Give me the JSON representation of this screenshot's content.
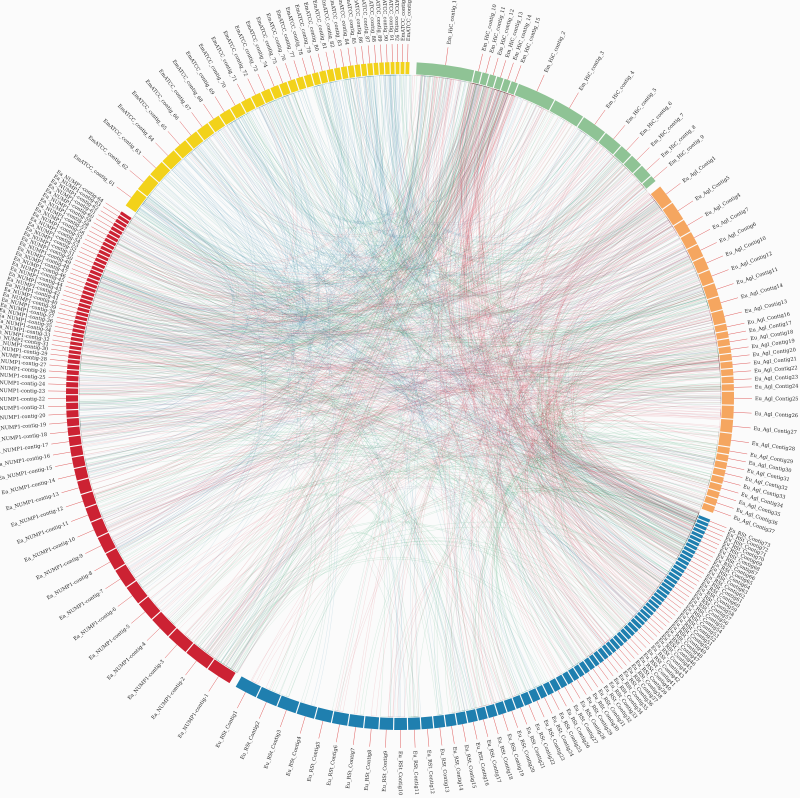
{
  "chart_data": {
    "type": "chord",
    "title": "",
    "colors": {
      "green_group": "#8fc395",
      "orange_group": "#f5a660",
      "blue_group": "#1f7faf",
      "red_group": "#cc2233",
      "yellow_group": "#f2d21a",
      "links": [
        "#cc2233",
        "#1f7a9e",
        "#16914f",
        "#7a4e7e",
        "#b53a3a",
        "#2a8f6a"
      ]
    },
    "groups": [
      {
        "name": "EM_HiC",
        "color_key": "green_group",
        "segments": [
          "Em_HiC_contig_1",
          "Em_HiC_contig_10",
          "Em_HiC_contig_11",
          "Em_HiC_contig_12",
          "Em_HiC_contig_13",
          "Em_HiC_contig_14",
          "Em_HiC_contig_15",
          "Em_HiC_contig_2",
          "Em_HiC_contig_3",
          "Em_HiC_contig_4",
          "Em_HiC_contig_5",
          "Em_HiC_contig_6",
          "Em_HiC_contig_7",
          "Em_HiC_contig_8",
          "Em_HiC_contig_9"
        ],
        "weights": [
          9,
          1,
          1,
          1,
          1,
          1,
          1,
          6,
          5,
          4,
          3,
          2,
          2,
          2,
          1
        ]
      },
      {
        "name": "Eu_Agl",
        "color_key": "orange_group",
        "segments": [
          "Eu_Agl_Contig1",
          "Eu_Agl_Contig5",
          "Eu_Agl_Contig4",
          "Eu_Agl_Contig7",
          "Eu_Agl_Contig6",
          "Eu_Agl_Contig10",
          "Eu_Agl_Contig12",
          "Eu_Agl_Contig11",
          "Eu_Agl_Contig14",
          "Eu_Agl_Contig13",
          "Eu_Agl_Contig16",
          "Eu_Agl_Contig17",
          "Eu_Agl_Contig18",
          "Eu_Agl_Contig19",
          "Eu_Agl_Contig20",
          "Eu_Agl_Contig21",
          "Eu_Agl_Contig22",
          "Eu_Agl_Contig23",
          "Eu_Agl_Contig24",
          "Eu_Agl_Contig25",
          "Eu_Agl_Contig26",
          "Eu_Agl_Contig27",
          "Eu_Agl_Contig28",
          "Eu_Agl_Contig29",
          "Eu_Agl_Contig30",
          "Eu_Agl_Contig31",
          "Eu_Agl_Contig32",
          "Eu_Agl_Contig33",
          "Eu_Agl_Contig34",
          "Eu_Agl_Contig35",
          "Eu_Agl_Contig36",
          "Eu_Agl_Contig37"
        ],
        "weights": [
          3,
          3,
          2,
          2,
          2,
          2,
          2,
          2,
          2,
          2,
          1,
          1,
          1,
          1,
          1,
          1,
          1,
          1,
          1,
          2,
          2,
          2,
          2,
          1,
          1,
          1,
          1,
          1,
          1,
          1,
          1,
          1
        ]
      },
      {
        "name": "Eu_RSt",
        "color_key": "blue_group",
        "segments": [
          "Eu_RSt_Contig73",
          "Eu_RSt_Contig72",
          "Eu_RSt_Contig71",
          "Eu_RSt_Contig70",
          "Eu_RSt_Contig69",
          "Eu_RSt_Contig68",
          "Eu_RSt_Contig67",
          "Eu_RSt_Contig66",
          "Eu_RSt_Contig65",
          "Eu_RSt_Contig64",
          "Eu_RSt_Contig63",
          "Eu_RSt_Contig62",
          "Eu_RSt_Contig61",
          "Eu_RSt_Contig60",
          "Eu_RSt_Contig59",
          "Eu_RSt_Contig58",
          "Eu_RSt_Contig57",
          "Eu_RSt_Contig56",
          "Eu_RSt_Contig55",
          "Eu_RSt_Contig54",
          "Eu_RSt_Contig53",
          "Eu_RSt_Contig52",
          "Eu_RSt_Contig51",
          "Eu_RSt_Contig50",
          "Eu_RSt_Contig49",
          "Eu_RSt_Contig48",
          "Eu_RSt_Contig47",
          "Eu_RSt_Contig46",
          "Eu_RSt_Contig45",
          "Eu_RSt_Contig44",
          "Eu_RSt_Contig43",
          "Eu_RSt_Contig42",
          "Eu_RSt_Contig41",
          "Eu_RSt_Contig40",
          "Eu_RSt_Contig39",
          "Eu_RSt_Contig38",
          "Eu_RSt_Contig37",
          "Eu_RSt_Contig36",
          "Eu_RSt_Contig35",
          "Eu_RSt_Contig34",
          "Eu_RSt_Contig33",
          "Eu_RSt_Contig32",
          "Eu_RSt_Contig31",
          "Eu_RSt_Contig30",
          "Eu_RSt_Contig29",
          "Eu_RSt_Contig28",
          "Eu_RSt_Contig27",
          "Eu_RSt_Contig26",
          "Eu_RSt_Contig25",
          "Eu_RSt_Contig24",
          "Eu_RSt_Contig23",
          "Eu_RSt_Contig22",
          "Eu_RSt_Contig21",
          "Eu_RSt_Contig20",
          "Eu_RSt_Contig19",
          "Eu_RSt_Contig18",
          "Eu_RSt_Contig17",
          "Eu_RSt_Contig16",
          "Eu_RSt_Contig15",
          "Eu_RSt_Contig14",
          "Eu_RSt_Contig13",
          "Eu_RSt_Contig12",
          "Eu_RSt_Contig11",
          "Eu_RSt_Contig10",
          "Eu_RSt_Contig9",
          "Eu_RSt_Contig8",
          "Eu_RSt_Contig7",
          "Eu_RSt_Contig6",
          "Eu_RSt_Contig5",
          "Eu_RSt_Contig4",
          "Eu_RSt_Contig3",
          "Eu_RSt_Contig2",
          "Eu_RSt_Contig1"
        ],
        "weights": [
          0.5,
          0.5,
          0.5,
          0.5,
          0.5,
          0.5,
          0.5,
          0.5,
          0.5,
          0.5,
          0.5,
          0.5,
          0.5,
          0.5,
          0.5,
          0.5,
          0.5,
          0.5,
          0.5,
          0.5,
          0.5,
          0.5,
          0.5,
          0.5,
          0.5,
          0.5,
          0.5,
          0.5,
          0.5,
          0.6,
          0.6,
          0.6,
          0.6,
          0.6,
          0.6,
          0.6,
          0.6,
          0.6,
          0.7,
          0.7,
          0.7,
          0.8,
          0.8,
          0.8,
          0.9,
          0.9,
          1,
          1,
          1,
          1,
          1.2,
          1.2,
          1.2,
          1.3,
          1.3,
          1.4,
          1.4,
          1.5,
          1.5,
          1.6,
          1.7,
          1.8,
          1.9,
          2,
          2.1,
          2.2,
          2.3,
          2.4,
          2.5,
          2.8,
          3,
          3.3,
          3.5
        ]
      },
      {
        "name": "Ea_NUMP1",
        "color_key": "red_group",
        "segments": [
          "Ea_NUMP1-contig-1",
          "Ea_NUMP1-contig-2",
          "Ea_NUMP1-contig-3",
          "Ea_NUMP1-contig-4",
          "Ea_NUMP1-contig-5",
          "Ea_NUMP1-contig-6",
          "Ea_NUMP1-contig-7",
          "Ea_NUMP1-contig-8",
          "Ea_NUMP1-contig-9",
          "Ea_NUMP1-contig-10",
          "Ea_NUMP1-contig-11",
          "Ea_NUMP1-contig-12",
          "Ea_NUMP1-contig-13",
          "Ea_NUMP1-contig-14",
          "Ea_NUMP1-contig-15",
          "Ea_NUMP1-contig-16",
          "Ea_NUMP1-contig-17",
          "Ea_NUMP1-contig-18",
          "Ea_NUMP1-contig-19",
          "Ea_NUMP1-contig-20",
          "Ea_NUMP1-contig-21",
          "Ea_NUMP1-contig-22",
          "Ea_NUMP1-contig-23",
          "Ea_NUMP1-contig-24",
          "Ea_NUMP1-contig-25",
          "Ea_NUMP1-contig-26",
          "Ea_NUMP1-contig-27",
          "Ea_NUMP1-contig-28",
          "Ea_NUMP1-contig-29",
          "Ea_NUMP1-contig-30",
          "Ea_NUMP1-contig-31",
          "Ea_NUMP1-contig-32",
          "Ea_NUMP1-contig-33",
          "Ea_NUMP1-contig-34",
          "Ea_NUMP1-contig-35",
          "Ea_NUMP1-contig-36",
          "Ea_NUMP1-contig-37",
          "Ea_NUMP1-contig-38",
          "Ea_NUMP1-contig-39",
          "Ea_NUMP1-contig-40",
          "Ea_NUMP1-contig-41",
          "Ea_NUMP1-contig-42",
          "Ea_NUMP1-contig-43",
          "Ea_NUMP1-contig-44",
          "Ea_NUMP1-contig-45",
          "Ea_NUMP1-contig-46",
          "Ea_NUMP1-contig-47",
          "Ea_NUMP1-contig-48",
          "Ea_NUMP1-contig-49",
          "Ea_NUMP1-contig-50",
          "Ea_NUMP1-contig-51",
          "Ea_NUMP1-contig-52",
          "Ea_NUMP1-contig-53",
          "Ea_NUMP1-contig-54",
          "Ea_NUMP1-contig-55",
          "Ea_NUMP1-contig-56",
          "Ea_NUMP1-contig-57",
          "Ea_NUMP1-contig-58",
          "Ea_NUMP1-contig-59",
          "Ea_NUMP1-contig-60",
          "Ea_NUMP1-contig-61",
          "Ea_NUMP1-contig-62",
          "Ea_NUMP1-contig-63",
          "Ea_NUMP1-contig-64"
        ],
        "weights": [
          4,
          4,
          3.5,
          3.5,
          3,
          3,
          3,
          2.8,
          2.6,
          2.4,
          2.2,
          2,
          2,
          1.8,
          1.6,
          1.5,
          1.4,
          1.3,
          1.2,
          1.1,
          1,
          1,
          0.9,
          0.8,
          0.8,
          0.7,
          0.7,
          0.6,
          0.6,
          0.5,
          0.5,
          0.5,
          0.5,
          0.5,
          0.5,
          0.5,
          0.5,
          0.5,
          0.5,
          0.5,
          0.5,
          0.5,
          0.5,
          0.5,
          0.5,
          0.5,
          0.5,
          0.5,
          0.5,
          0.5,
          0.5,
          0.5,
          0.5,
          0.5,
          0.5,
          0.5,
          0.5,
          0.5,
          0.5,
          0.5,
          0.5,
          0.5,
          0.5,
          0.5
        ]
      },
      {
        "name": "EmATCC",
        "color_key": "yellow_group",
        "segments": [
          "EmATCC_contig_61",
          "EmATCC_contig_62",
          "EmATCC_contig_63",
          "EmATCC_contig_64",
          "EmATCC_contig_65",
          "EmATCC_contig_66",
          "EmATCC_contig_67",
          "EmATCC_contig_68",
          "EmATCC_contig_69",
          "EmATCC_contig_70",
          "EmATCC_contig_71",
          "EmATCC_contig_72",
          "EmATCC_contig_73",
          "EmATCC_contig_74",
          "EmATCC_contig_75",
          "EmATCC_contig_76",
          "EmATCC_contig_77",
          "EmATCC_contig_78",
          "EmATCC_contig_79",
          "EmATCC_contig_80",
          "EmATCC_contig_81",
          "EmATCC_contig_82",
          "EmATCC_contig_83",
          "EmATCC_contig_84",
          "EmATCC_contig_85",
          "EmATCC_contig_86",
          "EmATCC_contig_87",
          "EmATCC_contig_88",
          "EmATCC_contig_89",
          "EmATCC_contig_90",
          "EmATCC_contig_91",
          "EmATCC_contig_92",
          "EmATCC_contig_93",
          "EmATCC_contig_94"
        ],
        "weights": [
          3,
          2.8,
          2.6,
          2.4,
          2.2,
          2,
          2,
          1.9,
          1.8,
          1.7,
          1.6,
          1.5,
          1.4,
          1.3,
          1.2,
          1.2,
          1.1,
          1.1,
          1,
          1,
          1,
          0.9,
          0.9,
          0.9,
          0.8,
          0.8,
          0.8,
          0.7,
          0.7,
          0.7,
          0.6,
          0.6,
          0.6,
          0.6
        ]
      }
    ],
    "link_count": 700
  }
}
